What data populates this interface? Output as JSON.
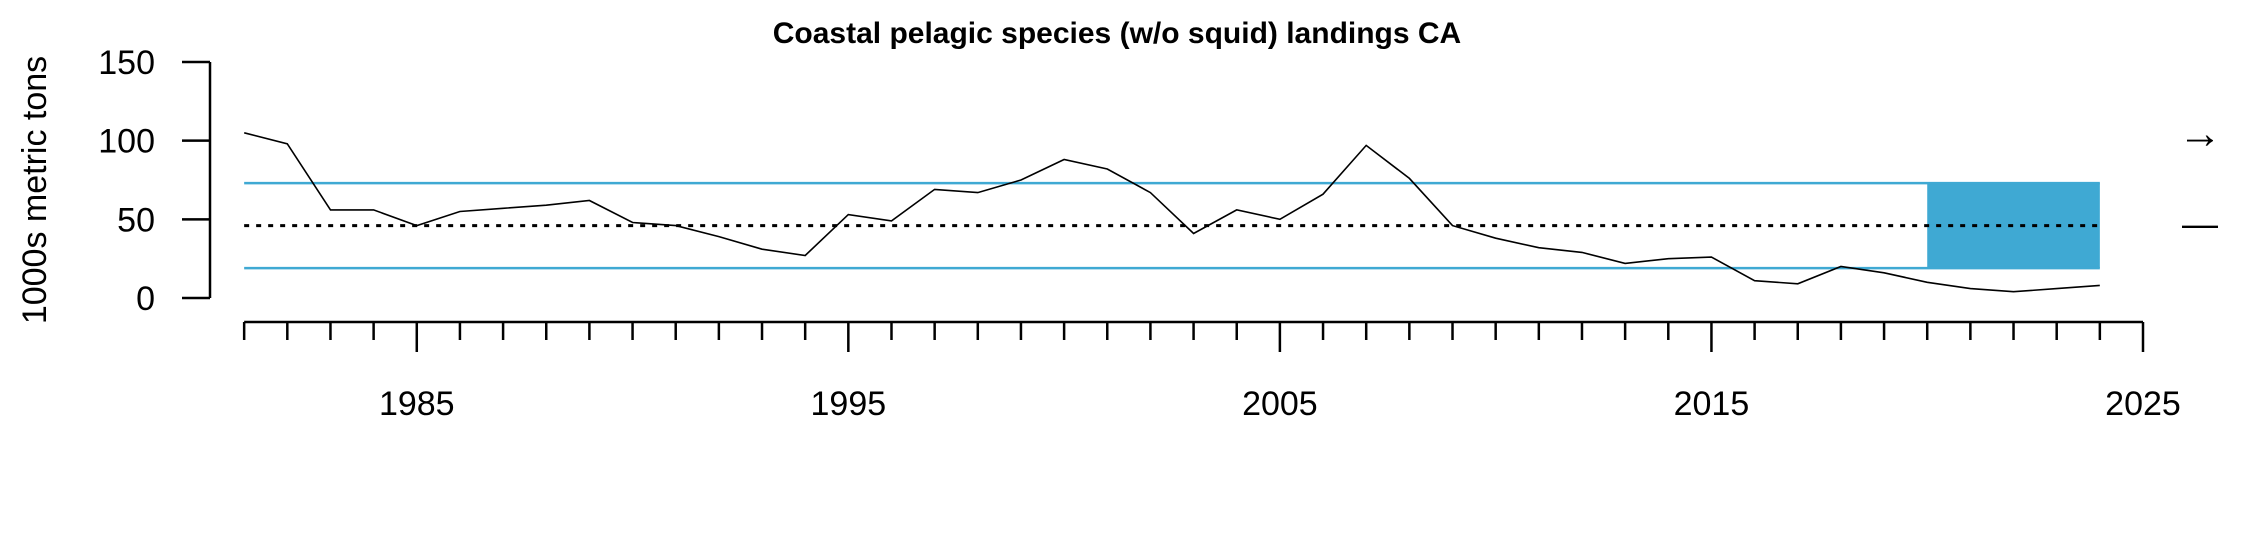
{
  "chart_data": {
    "type": "line",
    "title": "Coastal pelagic species (w/o squid) landings CA",
    "xlabel": "",
    "ylabel": "1000s metric tons",
    "xlim": [
      1980,
      2025
    ],
    "ylim": [
      0,
      150
    ],
    "x_ticks": [
      1985,
      1995,
      2005,
      2015,
      2025
    ],
    "y_ticks": [
      0,
      50,
      100,
      150
    ],
    "grid": false,
    "series": [
      {
        "x": [
          1981,
          1982,
          1983,
          1984,
          1985,
          1986,
          1987,
          1988,
          1989,
          1990,
          1991,
          1992,
          1993,
          1994,
          1995,
          1996,
          1997,
          1998,
          1999,
          2000,
          2001,
          2002,
          2003,
          2004,
          2005,
          2006,
          2007,
          2008,
          2009,
          2010,
          2011,
          2012,
          2013,
          2014,
          2015,
          2016,
          2017,
          2018,
          2019,
          2020,
          2021,
          2022,
          2023,
          2024
        ],
        "values": [
          105,
          98,
          56,
          56,
          46,
          55,
          57,
          59,
          62,
          48,
          46,
          39,
          31,
          27,
          53,
          49,
          69,
          67,
          75,
          88,
          82,
          67,
          41,
          56,
          50,
          66,
          97,
          76,
          46,
          38,
          32,
          29,
          22,
          25,
          26,
          11,
          9,
          20,
          16,
          10,
          6,
          4,
          6,
          8
        ],
        "color": "#000000"
      }
    ],
    "reference_lines": {
      "mean": 46,
      "upper": 73,
      "lower": 19,
      "band_color": "#3fa9d3",
      "mean_style": "dotted"
    },
    "highlight_period": {
      "x_start": 2020,
      "x_end": 2024,
      "color": "#3fa9d3"
    },
    "trend_indicators": {
      "trend": "→",
      "mean": "—"
    }
  }
}
